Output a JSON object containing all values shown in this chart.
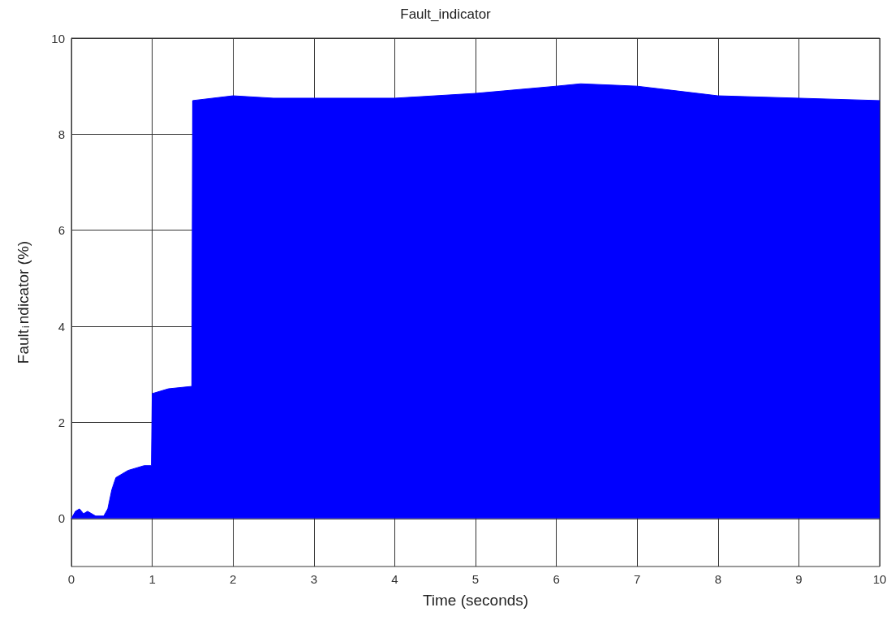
{
  "chart_data": {
    "type": "area",
    "title": "Fault_indicator",
    "xlabel": "Time (seconds)",
    "ylabel": "Fault$_{i}$ndicator (%)",
    "x": [
      0,
      0.05,
      0.1,
      0.15,
      0.2,
      0.3,
      0.4,
      0.45,
      0.5,
      0.55,
      0.7,
      0.9,
      0.99,
      1.0,
      1.2,
      1.49,
      1.5,
      2,
      2.5,
      3,
      4,
      5,
      6,
      6.3,
      7,
      7.5,
      8,
      9,
      10
    ],
    "series": [
      {
        "color": "#0000ff",
        "values": [
          0,
          0.15,
          0.2,
          0.1,
          0.15,
          0.05,
          0.05,
          0.2,
          0.6,
          0.85,
          1.0,
          1.1,
          1.1,
          2.6,
          2.7,
          2.75,
          8.7,
          8.8,
          8.75,
          8.75,
          8.75,
          8.85,
          9.0,
          9.05,
          9.0,
          8.9,
          8.8,
          8.75,
          8.7
        ]
      }
    ],
    "xlim": [
      0,
      10
    ],
    "xticks": [
      0,
      1,
      2,
      3,
      4,
      5,
      6,
      7,
      8,
      9,
      10
    ],
    "ylim": [
      -1,
      10
    ],
    "yticks": [
      0,
      2,
      4,
      6,
      8,
      10
    ],
    "grid": true,
    "marker": "none",
    "line_style": "solid"
  }
}
